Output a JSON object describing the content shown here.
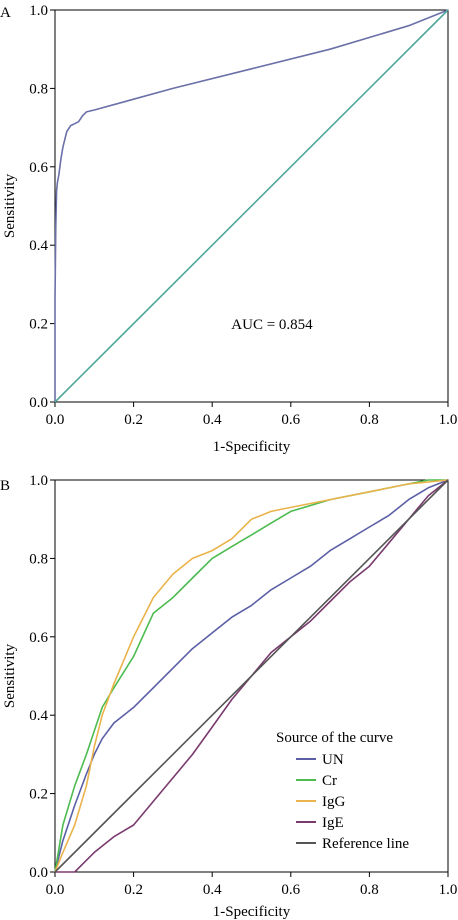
{
  "chart_data": [
    {
      "type": "line",
      "panel_label": "A",
      "xlabel": "1-Specificity",
      "ylabel": "Sensitivity",
      "xlim": [
        0,
        1
      ],
      "ylim": [
        0,
        1
      ],
      "xticks": [
        "0.0",
        "0.2",
        "0.4",
        "0.6",
        "0.8",
        "1.0"
      ],
      "yticks": [
        "0.0",
        "0.2",
        "0.4",
        "0.6",
        "0.8",
        "1.0"
      ],
      "annotation": "AUC = 0.854",
      "grid": false,
      "series": [
        {
          "color": "#6b70a8",
          "x": [
            0,
            0,
            0.002,
            0.004,
            0.006,
            0.01,
            0.015,
            0.02,
            0.025,
            0.03,
            0.04,
            0.05,
            0.06,
            0.07,
            0.08,
            0.1,
            0.3,
            0.5,
            0.7,
            0.9,
            1.0
          ],
          "y": [
            0,
            0.26,
            0.45,
            0.54,
            0.56,
            0.58,
            0.62,
            0.65,
            0.67,
            0.69,
            0.705,
            0.71,
            0.715,
            0.73,
            0.74,
            0.745,
            0.8,
            0.85,
            0.9,
            0.96,
            1.0
          ]
        },
        {
          "color": "#4fa89a",
          "x": [
            0,
            1
          ],
          "y": [
            0,
            1
          ]
        }
      ]
    },
    {
      "type": "line",
      "panel_label": "B",
      "xlabel": "1-Specificity",
      "ylabel": "Sensitivity",
      "xlim": [
        0,
        1
      ],
      "ylim": [
        0,
        1
      ],
      "xticks": [
        "0.0",
        "0.2",
        "0.4",
        "0.6",
        "0.8",
        "1.0"
      ],
      "yticks": [
        "0.0",
        "0.2",
        "0.4",
        "0.6",
        "0.8",
        "1.0"
      ],
      "grid": false,
      "legend": {
        "title": "Source of the curve",
        "placement": "bottom-right"
      },
      "series": [
        {
          "name": "UN",
          "color": "#5a5fa6",
          "x": [
            0,
            0.02,
            0.05,
            0.08,
            0.1,
            0.12,
            0.15,
            0.2,
            0.25,
            0.3,
            0.35,
            0.4,
            0.45,
            0.5,
            0.55,
            0.6,
            0.65,
            0.7,
            0.75,
            0.8,
            0.85,
            0.9,
            0.95,
            1.0
          ],
          "y": [
            0,
            0.08,
            0.17,
            0.25,
            0.3,
            0.34,
            0.38,
            0.42,
            0.47,
            0.52,
            0.57,
            0.61,
            0.65,
            0.68,
            0.72,
            0.75,
            0.78,
            0.82,
            0.85,
            0.88,
            0.91,
            0.95,
            0.98,
            1.0
          ]
        },
        {
          "name": "Cr",
          "color": "#4dbb4f",
          "x": [
            0,
            0.02,
            0.05,
            0.08,
            0.1,
            0.12,
            0.15,
            0.2,
            0.25,
            0.3,
            0.35,
            0.4,
            0.45,
            0.5,
            0.55,
            0.6,
            0.7,
            0.8,
            0.9,
            0.95,
            1.0
          ],
          "y": [
            0,
            0.12,
            0.22,
            0.3,
            0.36,
            0.42,
            0.47,
            0.55,
            0.66,
            0.7,
            0.75,
            0.8,
            0.83,
            0.86,
            0.89,
            0.92,
            0.95,
            0.97,
            0.99,
            1.0,
            1.0
          ]
        },
        {
          "name": "IgG",
          "color": "#eab34b",
          "x": [
            0,
            0.02,
            0.05,
            0.08,
            0.1,
            0.12,
            0.15,
            0.2,
            0.25,
            0.3,
            0.35,
            0.4,
            0.45,
            0.5,
            0.55,
            0.6,
            0.7,
            0.8,
            0.9,
            1.0
          ],
          "y": [
            0,
            0.05,
            0.12,
            0.22,
            0.32,
            0.4,
            0.48,
            0.6,
            0.7,
            0.76,
            0.8,
            0.82,
            0.85,
            0.9,
            0.92,
            0.93,
            0.95,
            0.97,
            0.99,
            1.0
          ]
        },
        {
          "name": "IgE",
          "color": "#7a3a6e",
          "x": [
            0,
            0.05,
            0.07,
            0.1,
            0.15,
            0.2,
            0.25,
            0.3,
            0.35,
            0.4,
            0.45,
            0.5,
            0.55,
            0.6,
            0.65,
            0.7,
            0.75,
            0.8,
            0.85,
            0.9,
            0.95,
            1.0
          ],
          "y": [
            0,
            0,
            0.02,
            0.05,
            0.09,
            0.12,
            0.18,
            0.24,
            0.3,
            0.37,
            0.44,
            0.5,
            0.56,
            0.6,
            0.64,
            0.69,
            0.74,
            0.78,
            0.84,
            0.9,
            0.96,
            1.0
          ]
        },
        {
          "name": "Reference line",
          "color": "#555555",
          "x": [
            0,
            1
          ],
          "y": [
            0,
            1
          ]
        }
      ]
    }
  ]
}
